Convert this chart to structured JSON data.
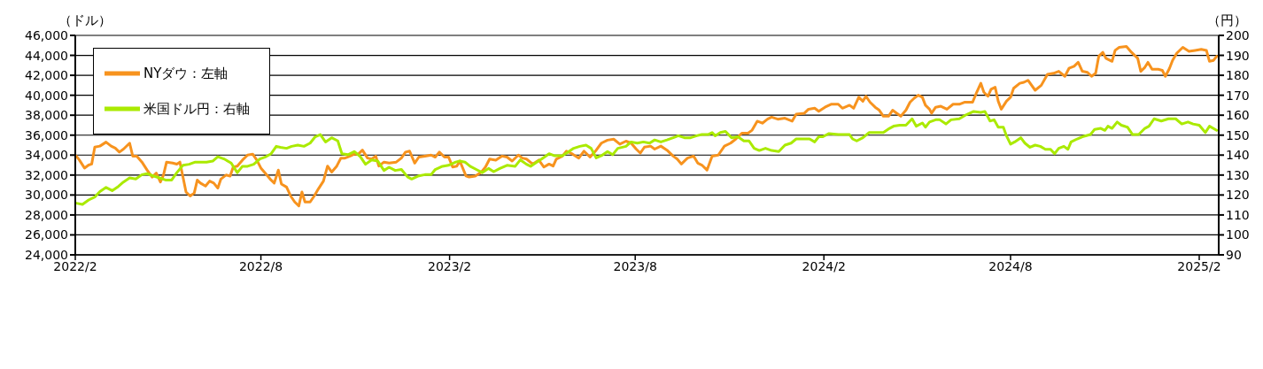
{
  "chart_data": {
    "type": "line",
    "ylabel": "（ドル）",
    "y2label": "（円）",
    "xlim": [
      "2022-02-01",
      "2025-02-20"
    ],
    "xticks": [
      {
        "value": "2022-02-01",
        "label": "2022/2"
      },
      {
        "value": "2022-08-01",
        "label": "2022/8"
      },
      {
        "value": "2023-02-01",
        "label": "2023/2"
      },
      {
        "value": "2023-08-01",
        "label": "2023/8"
      },
      {
        "value": "2024-02-01",
        "label": "2024/2"
      },
      {
        "value": "2024-08-01",
        "label": "2024/8"
      },
      {
        "value": "2025-02-01",
        "label": "2025/2"
      }
    ],
    "ylim": [
      24000,
      46000
    ],
    "yticks": [
      {
        "value": 24000,
        "label": "24,000"
      },
      {
        "value": 26000,
        "label": "26,000"
      },
      {
        "value": 28000,
        "label": "28,000"
      },
      {
        "value": 30000,
        "label": "30,000"
      },
      {
        "value": 32000,
        "label": "32,000"
      },
      {
        "value": 34000,
        "label": "34,000"
      },
      {
        "value": 36000,
        "label": "36,000"
      },
      {
        "value": 38000,
        "label": "38,000"
      },
      {
        "value": 40000,
        "label": "40,000"
      },
      {
        "value": 42000,
        "label": "42,000"
      },
      {
        "value": 44000,
        "label": "44,000"
      },
      {
        "value": 46000,
        "label": "46,000"
      }
    ],
    "y2lim": [
      90,
      200
    ],
    "y2ticks": [
      90,
      100,
      110,
      120,
      130,
      140,
      150,
      160,
      170,
      180,
      190,
      200
    ],
    "grid": "y",
    "legend": "top left",
    "series": [
      {
        "name": "NYダウ：左軸",
        "color": "#f7931e",
        "x": [
          "2022-02-02",
          "2022-02-05",
          "2022-02-10",
          "2022-02-14",
          "2022-02-17",
          "2022-02-20",
          "2022-02-25",
          "2022-03-03",
          "2022-03-08",
          "2022-03-12",
          "2022-03-16",
          "2022-03-20",
          "2022-03-26",
          "2022-03-29",
          "2022-04-02",
          "2022-04-07",
          "2022-04-12",
          "2022-04-17",
          "2022-04-21",
          "2022-04-25",
          "2022-04-28",
          "2022-05-01",
          "2022-05-07",
          "2022-05-11",
          "2022-05-14",
          "2022-05-17",
          "2022-05-20",
          "2022-05-24",
          "2022-05-28",
          "2022-05-31",
          "2022-06-03",
          "2022-06-08",
          "2022-06-12",
          "2022-06-16",
          "2022-06-20",
          "2022-06-23",
          "2022-06-28",
          "2022-07-02",
          "2022-07-05",
          "2022-07-09",
          "2022-07-14",
          "2022-07-19",
          "2022-07-24",
          "2022-07-28",
          "2022-08-01",
          "2022-08-06",
          "2022-08-10",
          "2022-08-14",
          "2022-08-18",
          "2022-08-21",
          "2022-08-26",
          "2022-08-30",
          "2022-09-03",
          "2022-09-07",
          "2022-09-10",
          "2022-09-13",
          "2022-09-18",
          "2022-09-22",
          "2022-09-26",
          "2022-10-01",
          "2022-10-05",
          "2022-10-09",
          "2022-10-14",
          "2022-10-18",
          "2022-10-22",
          "2022-10-27",
          "2022-10-31",
          "2022-11-04",
          "2022-11-08",
          "2022-11-13",
          "2022-11-17",
          "2022-11-21",
          "2022-11-24",
          "2022-11-29",
          "2022-12-04",
          "2022-12-11",
          "2022-12-16",
          "2022-12-20",
          "2022-12-24",
          "2022-12-29",
          "2023-01-02",
          "2023-01-08",
          "2023-01-14",
          "2023-01-18",
          "2023-01-22",
          "2023-01-27",
          "2023-01-31",
          "2023-02-04",
          "2023-02-08",
          "2023-02-11",
          "2023-02-17",
          "2023-02-20",
          "2023-02-26",
          "2023-03-04",
          "2023-03-08",
          "2023-03-12",
          "2023-03-18",
          "2023-03-24",
          "2023-03-29",
          "2023-04-03",
          "2023-04-09",
          "2023-04-13",
          "2023-04-17",
          "2023-04-23",
          "2023-04-29",
          "2023-05-04",
          "2023-05-09",
          "2023-05-13",
          "2023-05-16",
          "2023-05-22",
          "2023-05-26",
          "2023-06-01",
          "2023-06-07",
          "2023-06-12",
          "2023-06-18",
          "2023-06-24",
          "2023-06-29",
          "2023-07-05",
          "2023-07-11",
          "2023-07-17",
          "2023-07-23",
          "2023-07-28",
          "2023-08-02",
          "2023-08-06",
          "2023-08-10",
          "2023-08-16",
          "2023-08-20",
          "2023-08-26",
          "2023-09-01",
          "2023-09-07",
          "2023-09-11",
          "2023-09-15",
          "2023-09-21",
          "2023-09-27",
          "2023-10-01",
          "2023-10-05",
          "2023-10-10",
          "2023-10-15",
          "2023-10-21",
          "2023-10-27",
          "2023-11-02",
          "2023-11-07",
          "2023-11-13",
          "2023-11-19",
          "2023-11-23",
          "2023-11-28",
          "2023-12-03",
          "2023-12-08",
          "2023-12-12",
          "2023-12-18",
          "2023-12-25",
          "2024-01-01",
          "2024-01-05",
          "2024-01-13",
          "2024-01-17",
          "2024-01-23",
          "2024-01-27",
          "2024-02-02",
          "2024-02-08",
          "2024-02-15",
          "2024-02-19",
          "2024-02-26",
          "2024-03-01",
          "2024-03-06",
          "2024-03-10",
          "2024-03-13",
          "2024-03-17",
          "2024-03-22",
          "2024-03-26",
          "2024-03-30",
          "2024-04-04",
          "2024-04-08",
          "2024-04-12",
          "2024-04-16",
          "2024-04-21",
          "2024-04-25",
          "2024-04-29",
          "2024-05-03",
          "2024-05-07",
          "2024-05-10",
          "2024-05-14",
          "2024-05-16",
          "2024-05-20",
          "2024-05-25",
          "2024-05-31",
          "2024-06-06",
          "2024-06-12",
          "2024-06-17",
          "2024-06-25",
          "2024-06-29",
          "2024-07-03",
          "2024-07-06",
          "2024-07-10",
          "2024-07-13",
          "2024-07-17",
          "2024-07-20",
          "2024-07-23",
          "2024-07-28",
          "2024-08-01",
          "2024-08-04",
          "2024-08-10",
          "2024-08-14",
          "2024-08-18",
          "2024-08-25",
          "2024-08-31",
          "2024-09-06",
          "2024-09-12",
          "2024-09-17",
          "2024-09-23",
          "2024-09-27",
          "2024-10-02",
          "2024-10-06",
          "2024-10-10",
          "2024-10-15",
          "2024-10-19",
          "2024-10-23",
          "2024-10-26",
          "2024-10-30",
          "2024-11-02",
          "2024-11-08",
          "2024-11-11",
          "2024-11-15",
          "2024-11-22",
          "2024-11-27",
          "2024-12-03",
          "2024-12-06",
          "2024-12-10",
          "2024-12-13",
          "2024-12-17",
          "2024-12-23",
          "2024-12-27",
          "2024-12-30",
          "2025-01-03",
          "2025-01-06",
          "2025-01-10",
          "2025-01-16",
          "2025-01-22",
          "2025-01-28",
          "2025-02-03",
          "2025-02-08",
          "2025-02-11",
          "2025-02-15",
          "2025-02-18"
        ],
        "values": [
          33900,
          33500,
          32700,
          33000,
          33100,
          34800,
          34900,
          35300,
          34900,
          34700,
          34300,
          34600,
          35200,
          33900,
          33900,
          33300,
          32500,
          31800,
          32200,
          31300,
          32000,
          33300,
          33200,
          33100,
          33300,
          31800,
          30300,
          29900,
          30200,
          31500,
          31200,
          30900,
          31400,
          31200,
          30700,
          31600,
          32000,
          31900,
          32800,
          32900,
          33500,
          34000,
          34100,
          33500,
          32700,
          32100,
          31600,
          31200,
          32500,
          31100,
          30800,
          29900,
          29300,
          28900,
          30300,
          29300,
          29300,
          29900,
          30600,
          31400,
          32900,
          32300,
          32900,
          33700,
          33700,
          33900,
          34100,
          34100,
          34500,
          33700,
          33600,
          33900,
          32900,
          33300,
          33200,
          33300,
          33700,
          34300,
          34400,
          33200,
          33800,
          33900,
          34000,
          33800,
          34300,
          33800,
          33800,
          32800,
          32900,
          33400,
          31900,
          31800,
          31900,
          32300,
          32800,
          33600,
          33500,
          33900,
          33800,
          33400,
          34000,
          33700,
          33600,
          33100,
          33500,
          32800,
          33100,
          32900,
          33600,
          33900,
          34400,
          34100,
          33700,
          34400,
          33800,
          34500,
          35200,
          35500,
          35600,
          35100,
          35400,
          35200,
          34600,
          34200,
          34800,
          34900,
          34600,
          34900,
          34500,
          33900,
          33600,
          33100,
          33700,
          33900,
          33200,
          33000,
          32500,
          33900,
          34000,
          34900,
          35200,
          35600,
          36200,
          36200,
          36500,
          37400,
          37200,
          37600,
          37800,
          37600,
          37700,
          37400,
          38100,
          38200,
          38600,
          38700,
          38400,
          38800,
          39100,
          39100,
          38700,
          39000,
          38700,
          39800,
          39400,
          39900,
          39300,
          38800,
          38500,
          37900,
          37900,
          38500,
          38200,
          37900,
          38500,
          39300,
          39700,
          40000,
          39800,
          39000,
          38600,
          38200,
          38800,
          38900,
          38600,
          39100,
          39100,
          39300,
          39300,
          40300,
          41200,
          40300,
          39900,
          40600,
          40800,
          39400,
          38600,
          39400,
          39800,
          40700,
          41200,
          41300,
          41500,
          40500,
          41000,
          42100,
          42200,
          42400,
          41900,
          42700,
          42900,
          43300,
          42400,
          42300,
          41900,
          42200,
          43900,
          44300,
          43700,
          43400,
          44500,
          44800,
          44900,
          44300,
          43700,
          42400,
          42800,
          43300,
          42600,
          42600,
          42500,
          41900,
          42700,
          43500,
          44200,
          44800,
          44400,
          44500,
          44600,
          44500,
          43400,
          43500,
          43900
        ]
      },
      {
        "name": "米国ドル円：右軸",
        "color": "#aaea00",
        "axis": "y2",
        "x": [
          "2022-02-02",
          "2022-02-08",
          "2022-02-14",
          "2022-02-20",
          "2022-02-25",
          "2022-03-03",
          "2022-03-09",
          "2022-03-15",
          "2022-03-20",
          "2022-03-26",
          "2022-04-01",
          "2022-04-07",
          "2022-04-12",
          "2022-04-18",
          "2022-04-24",
          "2022-04-30",
          "2022-05-06",
          "2022-05-11",
          "2022-05-17",
          "2022-05-23",
          "2022-05-29",
          "2022-06-03",
          "2022-06-09",
          "2022-06-15",
          "2022-06-20",
          "2022-06-26",
          "2022-07-03",
          "2022-07-09",
          "2022-07-14",
          "2022-07-19",
          "2022-07-25",
          "2022-07-31",
          "2022-08-06",
          "2022-08-11",
          "2022-08-16",
          "2022-08-20",
          "2022-08-26",
          "2022-08-31",
          "2022-09-06",
          "2022-09-12",
          "2022-09-18",
          "2022-09-23",
          "2022-09-28",
          "2022-10-03",
          "2022-10-09",
          "2022-10-15",
          "2022-10-19",
          "2022-10-25",
          "2022-10-31",
          "2022-11-06",
          "2022-11-11",
          "2022-11-17",
          "2022-11-23",
          "2022-11-29",
          "2022-12-04",
          "2022-12-10",
          "2022-12-16",
          "2022-12-22",
          "2022-12-26",
          "2023-01-02",
          "2023-01-08",
          "2023-01-14",
          "2023-01-18",
          "2023-01-25",
          "2023-01-31",
          "2023-02-07",
          "2023-02-11",
          "2023-02-16",
          "2023-02-21",
          "2023-02-27",
          "2023-03-05",
          "2023-03-11",
          "2023-03-16",
          "2023-03-22",
          "2023-03-29",
          "2023-04-06",
          "2023-04-11",
          "2023-04-17",
          "2023-04-21",
          "2023-04-27",
          "2023-05-02",
          "2023-05-09",
          "2023-05-14",
          "2023-05-22",
          "2023-05-27",
          "2023-06-02",
          "2023-06-08",
          "2023-06-14",
          "2023-06-19",
          "2023-06-24",
          "2023-06-29",
          "2023-07-05",
          "2023-07-10",
          "2023-07-15",
          "2023-07-23",
          "2023-07-28",
          "2023-08-03",
          "2023-08-09",
          "2023-08-15",
          "2023-08-20",
          "2023-08-26",
          "2023-09-01",
          "2023-09-07",
          "2023-09-12",
          "2023-09-18",
          "2023-09-24",
          "2023-09-30",
          "2023-10-05",
          "2023-10-11",
          "2023-10-15",
          "2023-10-18",
          "2023-10-23",
          "2023-10-28",
          "2023-11-03",
          "2023-11-09",
          "2023-11-15",
          "2023-11-20",
          "2023-11-25",
          "2023-11-30",
          "2023-12-06",
          "2023-12-12",
          "2023-12-19",
          "2023-12-25",
          "2023-12-31",
          "2024-01-05",
          "2024-01-13",
          "2024-01-18",
          "2024-01-23",
          "2024-01-27",
          "2024-01-31",
          "2024-02-06",
          "2024-02-15",
          "2024-02-26",
          "2024-02-29",
          "2024-03-04",
          "2024-03-10",
          "2024-03-16",
          "2024-03-23",
          "2024-03-30",
          "2024-04-05",
          "2024-04-09",
          "2024-04-15",
          "2024-04-21",
          "2024-04-27",
          "2024-05-01",
          "2024-05-07",
          "2024-05-10",
          "2024-05-14",
          "2024-05-20",
          "2024-05-24",
          "2024-05-30",
          "2024-06-04",
          "2024-06-12",
          "2024-06-19",
          "2024-06-26",
          "2024-07-03",
          "2024-07-07",
          "2024-07-12",
          "2024-07-16",
          "2024-07-20",
          "2024-07-25",
          "2024-07-28",
          "2024-08-01",
          "2024-08-05",
          "2024-08-11",
          "2024-08-15",
          "2024-08-20",
          "2024-08-25",
          "2024-08-30",
          "2024-09-04",
          "2024-09-09",
          "2024-09-13",
          "2024-09-17",
          "2024-09-22",
          "2024-09-26",
          "2024-09-29",
          "2024-10-05",
          "2024-10-10",
          "2024-10-18",
          "2024-10-22",
          "2024-10-28",
          "2024-11-01",
          "2024-11-04",
          "2024-11-08",
          "2024-11-13",
          "2024-11-17",
          "2024-11-23",
          "2024-11-28",
          "2024-12-04",
          "2024-12-10",
          "2024-12-14",
          "2024-12-19",
          "2024-12-26",
          "2025-01-02",
          "2025-01-09",
          "2025-01-15",
          "2025-01-21",
          "2025-01-26",
          "2025-02-01",
          "2025-02-07",
          "2025-02-11",
          "2025-02-18"
        ],
        "values": [
          115.9,
          115.3,
          117.5,
          119.0,
          121.7,
          123.8,
          122.2,
          124.3,
          126.5,
          128.6,
          128.0,
          130.2,
          130.7,
          129.6,
          128.6,
          127.5,
          127.5,
          131.2,
          134.9,
          135.4,
          136.5,
          136.5,
          136.5,
          137.0,
          139.2,
          138.1,
          136.0,
          131.2,
          134.4,
          134.4,
          135.4,
          138.1,
          139.2,
          140.7,
          144.4,
          143.9,
          143.4,
          144.4,
          145.0,
          144.4,
          146.0,
          149.2,
          150.3,
          146.6,
          148.7,
          147.1,
          140.7,
          140.2,
          141.8,
          139.2,
          135.4,
          137.6,
          137.0,
          132.3,
          133.9,
          132.3,
          132.8,
          129.1,
          128.0,
          129.6,
          130.2,
          130.2,
          132.8,
          134.4,
          134.9,
          136.5,
          137.0,
          136.5,
          134.4,
          132.8,
          131.2,
          133.3,
          131.7,
          133.3,
          134.9,
          134.4,
          137.6,
          135.4,
          134.4,
          136.5,
          138.1,
          140.7,
          139.7,
          139.7,
          141.3,
          143.4,
          144.4,
          145.0,
          143.4,
          138.6,
          139.7,
          141.8,
          140.2,
          143.4,
          144.4,
          146.6,
          146.0,
          146.6,
          146.0,
          147.6,
          146.6,
          147.6,
          148.7,
          149.7,
          148.7,
          148.7,
          149.7,
          150.3,
          150.3,
          151.3,
          149.7,
          151.3,
          151.9,
          148.7,
          149.2,
          147.1,
          147.1,
          143.4,
          142.3,
          143.4,
          142.3,
          141.8,
          145.0,
          146.0,
          148.1,
          148.1,
          148.1,
          146.6,
          149.2,
          149.2,
          150.8,
          150.3,
          150.3,
          148.1,
          147.1,
          148.7,
          151.3,
          151.3,
          151.3,
          153.4,
          154.5,
          155.0,
          155.0,
          158.2,
          154.5,
          156.1,
          154.0,
          156.6,
          157.7,
          157.7,
          155.6,
          157.7,
          158.2,
          160.3,
          161.9,
          161.4,
          161.9,
          157.1,
          157.7,
          154.0,
          154.0,
          149.7,
          145.5,
          146.6,
          148.7,
          146.0,
          143.9,
          145.0,
          144.4,
          142.9,
          142.9,
          140.7,
          143.4,
          144.4,
          142.9,
          146.6,
          148.1,
          149.2,
          150.3,
          152.9,
          153.4,
          152.4,
          154.5,
          153.4,
          156.6,
          155.0,
          154.0,
          150.3,
          150.3,
          153.4,
          154.5,
          158.2,
          157.1,
          158.2,
          158.2,
          155.6,
          156.6,
          155.6,
          155.0,
          151.3,
          154.5,
          152.4
        ]
      }
    ]
  }
}
